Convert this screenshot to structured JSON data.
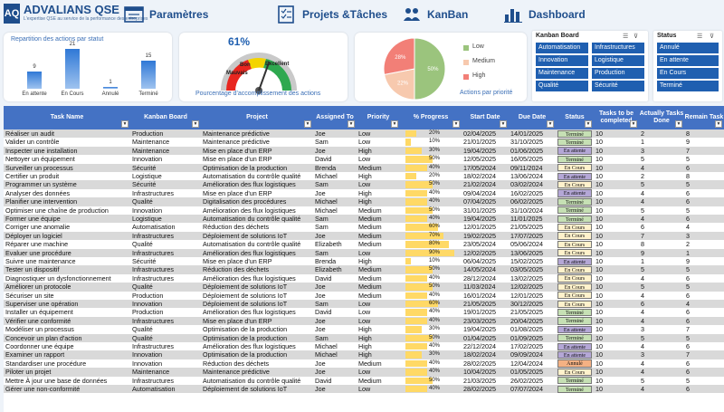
{
  "header": {
    "logo_mark": "AQ",
    "logo_text": "ADVALIANS QSE",
    "logo_sub": "L'expertise QSE au service de la performance des entreprises",
    "nav": [
      {
        "label": "Paramètres",
        "icon": "settings-window-icon"
      },
      {
        "label": "Projets &Tâches",
        "icon": "checklist-icon"
      },
      {
        "label": "KanBan",
        "icon": "people-icon"
      },
      {
        "label": "Dashboard",
        "icon": "bar-chart-icon"
      }
    ]
  },
  "status_chart": {
    "title": "Repartition des actions par statut",
    "chart_data": {
      "type": "bar",
      "categories": [
        "En attente",
        "En Cours",
        "Annulé",
        "Terminé"
      ],
      "values": [
        9,
        21,
        1,
        15
      ],
      "ylim": [
        0,
        21
      ]
    }
  },
  "gauge": {
    "value_label": "61%",
    "value": 61,
    "zones": [
      "Mauvais",
      "Bon",
      "Excellent"
    ],
    "caption": "Pourcentage d'accomplissement des actions"
  },
  "priority_chart": {
    "caption": "Actions par priorité",
    "chart_data": {
      "type": "pie",
      "categories": [
        "Low",
        "Medium",
        "High"
      ],
      "values": [
        50,
        22,
        28
      ],
      "labels": [
        "50%",
        "22%",
        "28%"
      ],
      "colors": [
        "#9bc47d",
        "#f7c9ae",
        "#f27f77"
      ]
    },
    "legend": [
      {
        "label": "Low",
        "color": "#9bc47d"
      },
      {
        "label": "Medium",
        "color": "#f7c9ae"
      },
      {
        "label": "High",
        "color": "#f27f77"
      }
    ]
  },
  "slicer_kanban": {
    "title": "Kanban Board",
    "items": [
      "Automatisation",
      "Infrastructures",
      "Innovation",
      "Logistique",
      "Maintenance",
      "Production",
      "Qualité",
      "Sécurité"
    ]
  },
  "slicer_status": {
    "title": "Status",
    "items": [
      "Annulé",
      "En attente",
      "En Cours",
      "Terminé"
    ]
  },
  "table": {
    "columns": [
      "Task Name",
      "Kanban Board",
      "Project",
      "Assigned To",
      "Priority",
      "% Progress",
      "Start Date",
      "Due Date",
      "Status",
      "Tasks to be completed",
      "Actually Tasks Done",
      "Remain Task"
    ],
    "status_colors": {
      "Terminé": "#c6e0b4",
      "En attente": "#b4a7d6",
      "En Cours": "#fff2cc",
      "Annulé": "#f4b183"
    },
    "rows": [
      [
        "Réaliser un audit",
        "Production",
        "Maintenance prédictive",
        "Joe",
        "Low",
        20,
        "02/04/2025",
        "14/01/2025",
        "Terminé",
        10,
        2,
        8
      ],
      [
        "Valider un contrôle",
        "Maintenance",
        "Maintenance prédictive",
        "Sam",
        "Low",
        10,
        "21/01/2025",
        "31/10/2025",
        "Terminé",
        10,
        1,
        9
      ],
      [
        "Inspecter une installation",
        "Maintenance",
        "Mise en place d'un ERP",
        "Joe",
        "High",
        30,
        "19/04/2025",
        "01/06/2025",
        "En attente",
        10,
        3,
        7
      ],
      [
        "Nettoyer un équipement",
        "Innovation",
        "Mise en place d'un ERP",
        "David",
        "Low",
        50,
        "12/05/2025",
        "16/05/2025",
        "Terminé",
        10,
        5,
        5
      ],
      [
        "Surveiller un processus",
        "Sécurité",
        "Optimisation de la production",
        "Brenda",
        "Medium",
        40,
        "17/05/2024",
        "09/11/2024",
        "En Cours",
        10,
        4,
        6
      ],
      [
        "Certifier un produit",
        "Logistique",
        "Automatisation du contrôle qualité",
        "Michael",
        "High",
        20,
        "18/02/2024",
        "13/06/2024",
        "En attente",
        10,
        2,
        8
      ],
      [
        "Programmer un système",
        "Sécurité",
        "Amélioration des flux logistiques",
        "Sam",
        "Low",
        50,
        "21/02/2024",
        "03/02/2024",
        "En Cours",
        10,
        5,
        5
      ],
      [
        "Analyser des données",
        "Infrastructures",
        "Mise en place d'un ERP",
        "Joe",
        "High",
        40,
        "09/04/2024",
        "16/02/2025",
        "En attente",
        10,
        4,
        6
      ],
      [
        "Planifier une intervention",
        "Qualité",
        "Digitalisation des procédures",
        "Michael",
        "High",
        40,
        "07/04/2025",
        "06/02/2025",
        "Terminé",
        10,
        4,
        6
      ],
      [
        "Optimiser une chaîne de production",
        "Innovation",
        "Amélioration des flux logistiques",
        "Michael",
        "Medium",
        50,
        "31/01/2025",
        "31/10/2024",
        "Terminé",
        10,
        5,
        5
      ],
      [
        "Former une équipe",
        "Logistique",
        "Automatisation du contrôle qualité",
        "Sam",
        "Medium",
        40,
        "19/04/2025",
        "11/01/2025",
        "Terminé",
        10,
        4,
        6
      ],
      [
        "Corriger une anomalie",
        "Automatisation",
        "Réduction des déchets",
        "Sam",
        "Medium",
        60,
        "12/01/2025",
        "21/05/2025",
        "En Cours",
        10,
        6,
        4
      ],
      [
        "Déployer un logiciel",
        "Infrastructures",
        "Déploiement de solutions IoT",
        "Joe",
        "Medium",
        70,
        "19/02/2025",
        "17/07/2025",
        "En Cours",
        10,
        7,
        3
      ],
      [
        "Réparer une machine",
        "Qualité",
        "Automatisation du contrôle qualité",
        "Elizabeth",
        "Medium",
        80,
        "23/05/2024",
        "05/06/2024",
        "En Cours",
        10,
        8,
        2
      ],
      [
        "Evaluer une procédure",
        "Infrastructures",
        "Amélioration des flux logistiques",
        "Sam",
        "Low",
        90,
        "12/02/2025",
        "13/06/2025",
        "En Cours",
        10,
        9,
        1
      ],
      [
        "Suivre une maintenance",
        "Sécurité",
        "Mise en place d'un ERP",
        "Brenda",
        "High",
        10,
        "06/04/2025",
        "15/02/2025",
        "En attente",
        10,
        1,
        9
      ],
      [
        "Tester un dispositif",
        "Infrastructures",
        "Réduction des déchets",
        "Elizabeth",
        "Medium",
        50,
        "14/05/2024",
        "03/05/2025",
        "En Cours",
        10,
        5,
        5
      ],
      [
        "Diagnostiquer un dysfonctionnement",
        "Infrastructures",
        "Amélioration des flux logistiques",
        "David",
        "Medium",
        40,
        "28/12/2024",
        "13/02/2025",
        "En Cours",
        10,
        4,
        6
      ],
      [
        "Améliorer un protocole",
        "Qualité",
        "Déploiement de solutions IoT",
        "Joe",
        "Medium",
        50,
        "11/03/2024",
        "12/02/2025",
        "En Cours",
        10,
        5,
        5
      ],
      [
        "Sécuriser un site",
        "Production",
        "Déploiement de solutions IoT",
        "Joe",
        "Medium",
        40,
        "16/01/2024",
        "12/01/2025",
        "En Cours",
        10,
        4,
        6
      ],
      [
        "Superviser une opération",
        "Innovation",
        "Déploiement de solutions IoT",
        "Sam",
        "Low",
        60,
        "21/05/2025",
        "30/12/2025",
        "En Cours",
        10,
        6,
        4
      ],
      [
        "Installer un équipement",
        "Production",
        "Amélioration des flux logistiques",
        "David",
        "Low",
        40,
        "19/01/2025",
        "21/05/2025",
        "Terminé",
        10,
        4,
        6
      ],
      [
        "Vérifier une conformité",
        "Infrastructures",
        "Mise en place d'un ERP",
        "Joe",
        "Low",
        40,
        "23/03/2025",
        "20/04/2025",
        "Terminé",
        10,
        4,
        6
      ],
      [
        "Modéliser un processus",
        "Qualité",
        "Optimisation de la production",
        "Joe",
        "High",
        30,
        "19/04/2025",
        "01/08/2025",
        "En attente",
        10,
        3,
        7
      ],
      [
        "Concevoir un plan d'action",
        "Qualité",
        "Optimisation de la production",
        "Sam",
        "High",
        50,
        "01/04/2025",
        "01/09/2025",
        "Terminé",
        10,
        5,
        5
      ],
      [
        "Coordonner une équipe",
        "Infrastructures",
        "Amélioration des flux logistiques",
        "Michael",
        "High",
        40,
        "22/12/2024",
        "17/02/2025",
        "En attente",
        10,
        4,
        6
      ],
      [
        "Examiner un rapport",
        "Innovation",
        "Optimisation de la production",
        "Michael",
        "High",
        30,
        "18/02/2024",
        "09/09/2024",
        "En attente",
        10,
        3,
        7
      ],
      [
        "Standardiser une procédure",
        "Innovation",
        "Réduction des déchets",
        "Joe",
        "Medium",
        40,
        "28/02/2025",
        "12/04/2024",
        "Annulé",
        10,
        4,
        6
      ],
      [
        "Piloter un projet",
        "Maintenance",
        "Maintenance prédictive",
        "Joe",
        "Low",
        40,
        "10/04/2025",
        "01/05/2025",
        "En Cours",
        10,
        4,
        6
      ],
      [
        "Mettre À jour une base de données",
        "Infrastructures",
        "Automatisation du contrôle qualité",
        "David",
        "Medium",
        50,
        "21/03/2025",
        "26/02/2025",
        "Terminé",
        10,
        5,
        5
      ],
      [
        "Gérer une non-conformité",
        "Automatisation",
        "Déploiement de solutions IoT",
        "Joe",
        "Low",
        40,
        "28/02/2025",
        "07/07/2024",
        "Terminé",
        10,
        4,
        6
      ]
    ]
  }
}
